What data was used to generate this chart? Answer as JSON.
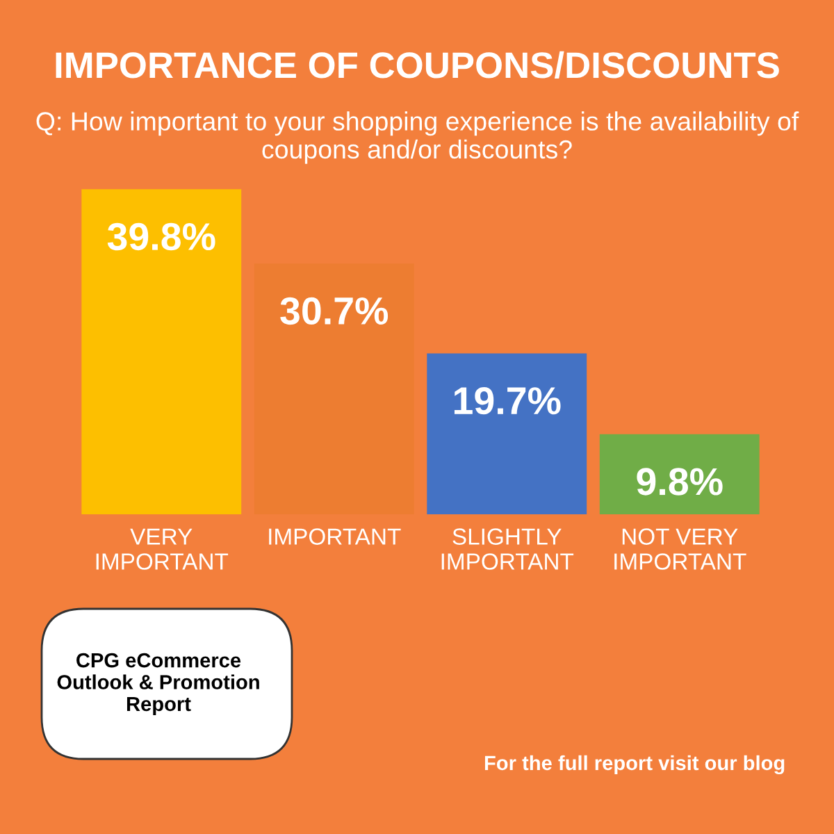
{
  "chart_data": {
    "type": "bar",
    "title": "IMPORTANCE OF COUPONS/DISCOUNTS",
    "subtitle": "Q: How important to your shopping experience is the availability of coupons and/or discounts?",
    "categories": [
      "VERY\nIMPORTANT",
      "IMPORTANT",
      "SLIGHTLY\nIMPORTANT",
      "NOT VERY\nIMPORTANT"
    ],
    "values": [
      39.8,
      30.7,
      19.7,
      9.8
    ],
    "colors": [
      "#fdbf00",
      "#ed7d31",
      "#4472c4",
      "#70ad47"
    ],
    "value_labels": [
      "39.8%",
      "30.7%",
      "19.7%",
      "9.8%"
    ],
    "ylim": [
      0,
      40
    ],
    "annotations": [
      "CPG eCommerce\nOutlook & Promotion\nReport",
      "For the full report visit our blog"
    ],
    "grid": false,
    "legend": false
  }
}
